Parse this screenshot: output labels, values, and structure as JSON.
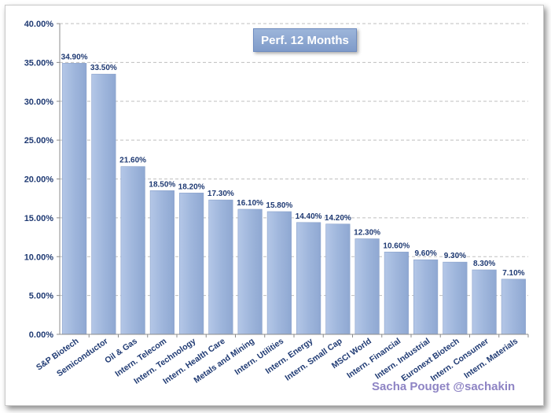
{
  "chart_data": {
    "type": "bar",
    "title": "Perf. 12 Months",
    "categories": [
      "S&P Biotech",
      "Semiconductor",
      "Oil & Gas",
      "Intern. Telecom",
      "Intern. Technology",
      "Intern. Health Care",
      "Metals and Mining",
      "Intern. Utilities",
      "Intern. Energy",
      "Intern. Small Cap",
      "MSCI World",
      "Intern. Financial",
      "Intern. Industrial",
      "Euronext Biotech",
      "Intern. Consumer",
      "Intern. Materials"
    ],
    "values": [
      34.9,
      33.5,
      21.6,
      18.5,
      18.2,
      17.3,
      16.1,
      15.8,
      14.4,
      14.2,
      12.3,
      10.6,
      9.6,
      9.3,
      8.3,
      7.1
    ],
    "value_labels": [
      "34.90%",
      "33.50%",
      "21.60%",
      "18.50%",
      "18.20%",
      "17.30%",
      "16.10%",
      "15.80%",
      "14.40%",
      "14.20%",
      "12.30%",
      "10.60%",
      "9.60%",
      "9.30%",
      "8.30%",
      "7.10%"
    ],
    "ylim": [
      0,
      40
    ],
    "yticks": [
      0,
      5,
      10,
      15,
      20,
      25,
      30,
      35,
      40
    ],
    "ytick_labels": [
      "0.00%",
      "5.00%",
      "10.00%",
      "15.00%",
      "20.00%",
      "25.00%",
      "30.00%",
      "35.00%",
      "40.00%"
    ],
    "xlabel": "",
    "ylabel": "",
    "grid": true,
    "bar_color": "#9fb6dc"
  },
  "credit": "Sacha Pouget @sachakin"
}
